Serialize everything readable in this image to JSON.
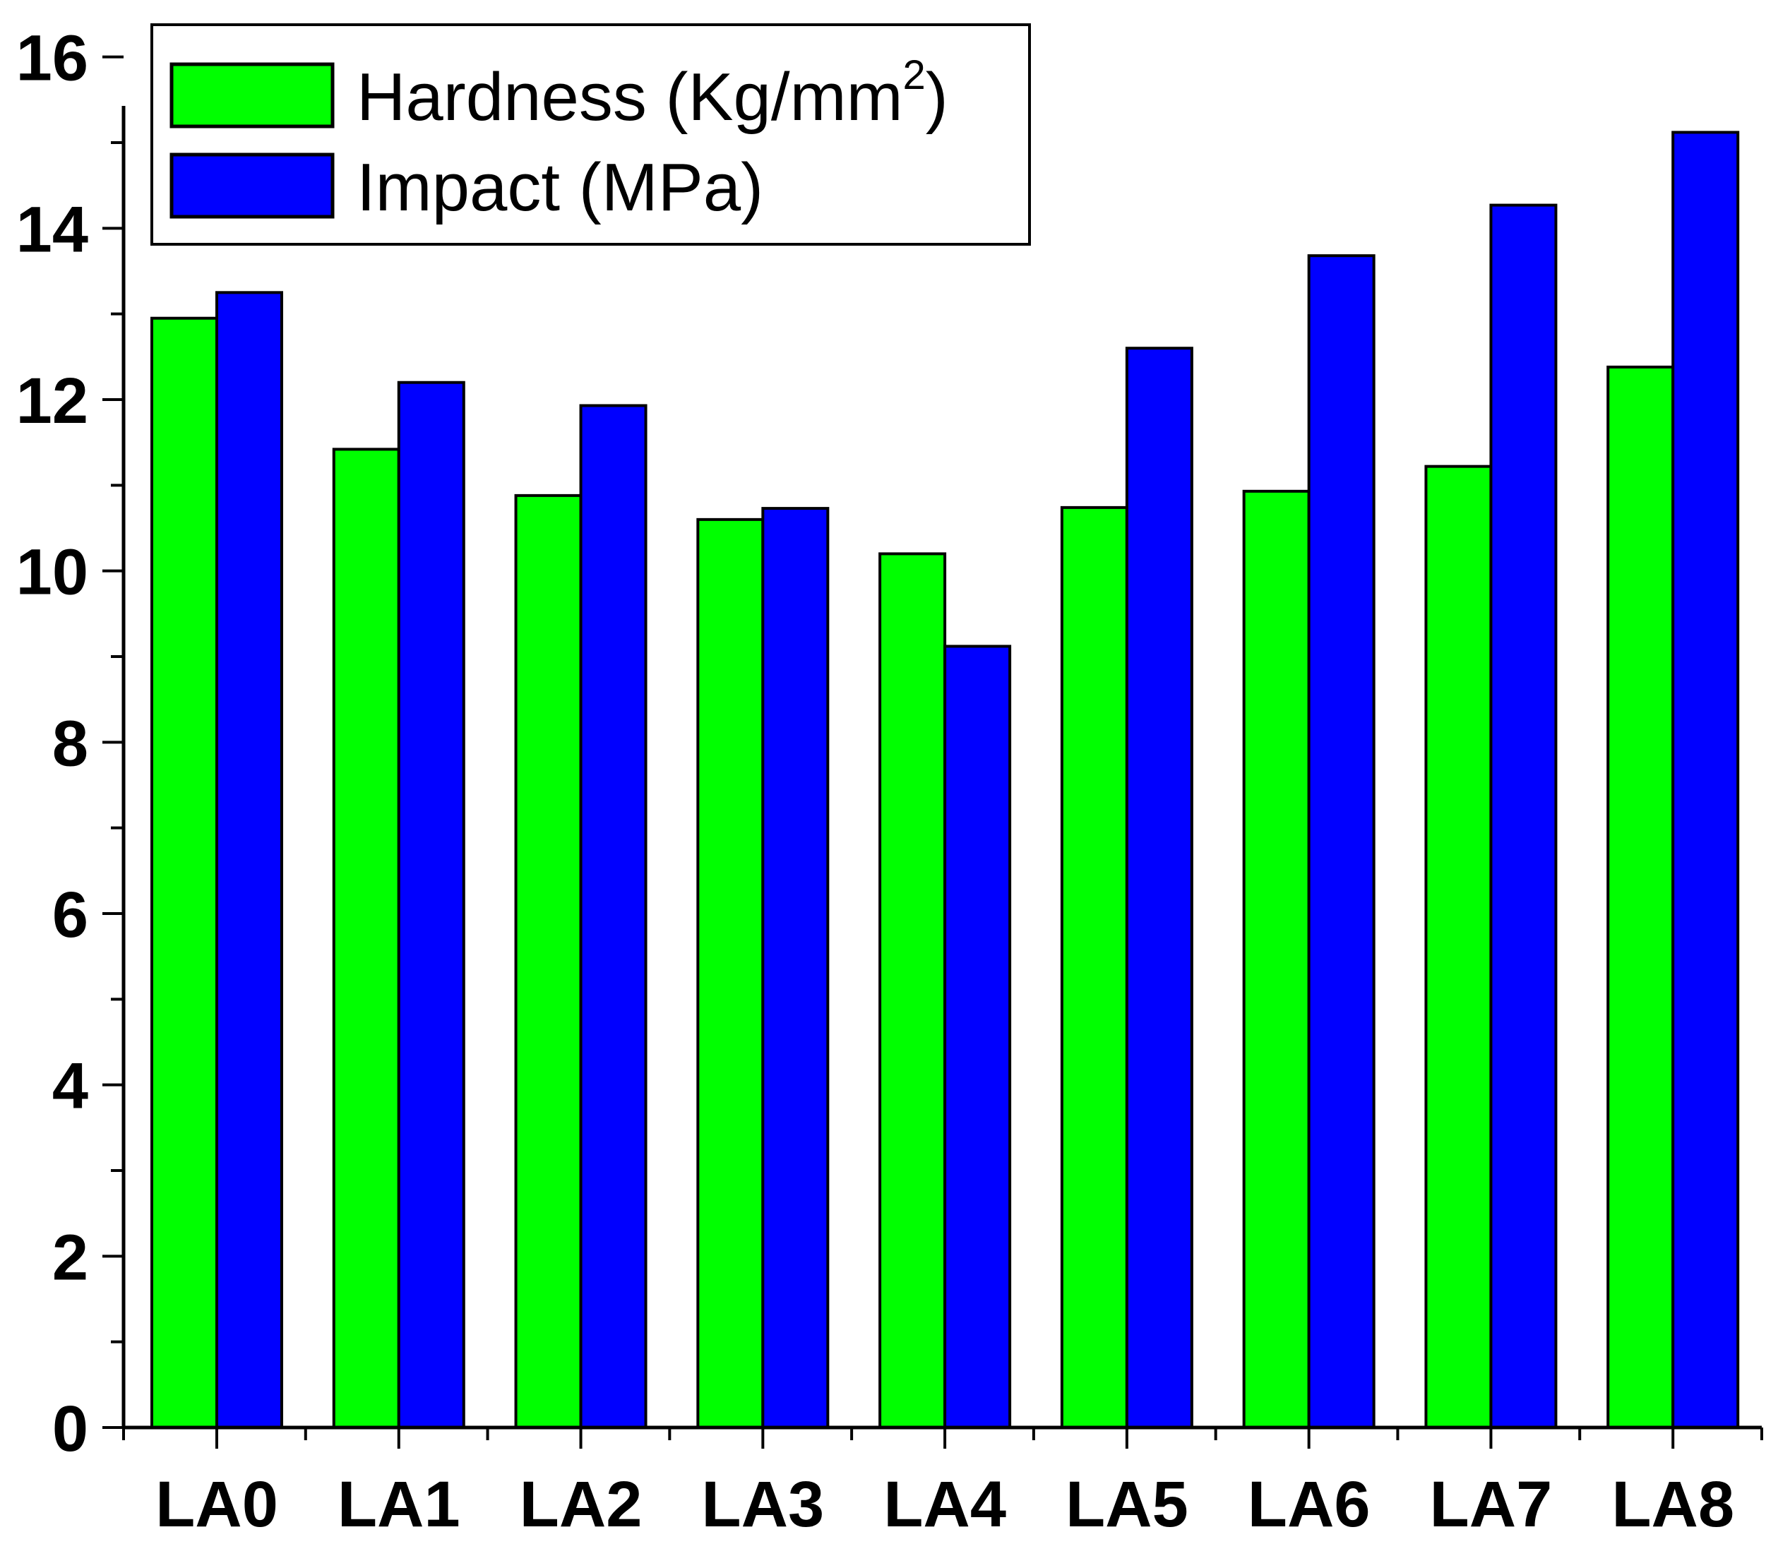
{
  "chart_data": {
    "type": "bar",
    "title": "",
    "xlabel": "",
    "ylabel": "",
    "categories": [
      "LA0",
      "LA1",
      "LA2",
      "LA3",
      "LA4",
      "LA5",
      "LA6",
      "LA7",
      "LA8"
    ],
    "series": [
      {
        "name": "Hardness (Kg/mm",
        "name_superscript": "2",
        "name_suffix": ")",
        "color": "#00FF00",
        "values": [
          12.95,
          11.42,
          10.88,
          10.6,
          10.2,
          10.74,
          10.93,
          11.22,
          12.38
        ]
      },
      {
        "name": "Impact (MPa)",
        "color": "#0000FF",
        "values": [
          13.25,
          12.2,
          11.93,
          10.73,
          9.12,
          12.6,
          13.68,
          14.27,
          15.12
        ]
      }
    ],
    "ylim": [
      0,
      16.5
    ],
    "yticks": [
      "0",
      "2",
      "4",
      "6",
      "8",
      "10",
      "12",
      "14",
      "16"
    ],
    "grid": false,
    "legend_position": "top-left"
  }
}
